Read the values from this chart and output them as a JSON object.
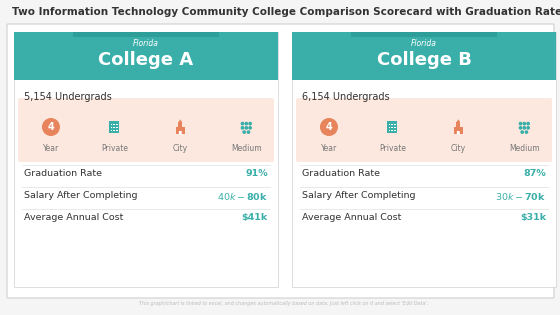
{
  "title": "Two Information Technology Community College Comparison Scorecard with Graduation Rate",
  "title_fontsize": 7.5,
  "bg_color": "#f5f5f5",
  "header_bg_color": "#3aafa9",
  "college_a_label": "Florida",
  "college_a_name": "College A",
  "college_b_label": "Florida",
  "college_b_name": "College B",
  "undergrads_a": "5,154 Undergrads",
  "undergrads_b": "6,154 Undergrads",
  "icon_bg_color": "#fce8de",
  "icon_color_orange": "#e8845c",
  "icon_color_teal": "#3aafa9",
  "icon_labels": [
    "Year",
    "Private",
    "City",
    "Medium"
  ],
  "stats_labels": [
    "Graduation Rate",
    "Salary After Completing",
    "Average Annual Cost"
  ],
  "college_a_values": [
    "91%",
    "$40k-$80k",
    "$41k"
  ],
  "college_b_values": [
    "87%",
    "$30k-$70k",
    "$31k"
  ],
  "footer_text": "This graph/chart is linked to excel, and changes automatically based on data. Just left click on it and select 'Edit Data'.",
  "card_bg": "#ffffff",
  "card_border": "#d0d0d0",
  "text_dark": "#333333",
  "text_gray": "#777777",
  "divider_color": "#e5e5e5",
  "outer_bg": "#ffffff"
}
